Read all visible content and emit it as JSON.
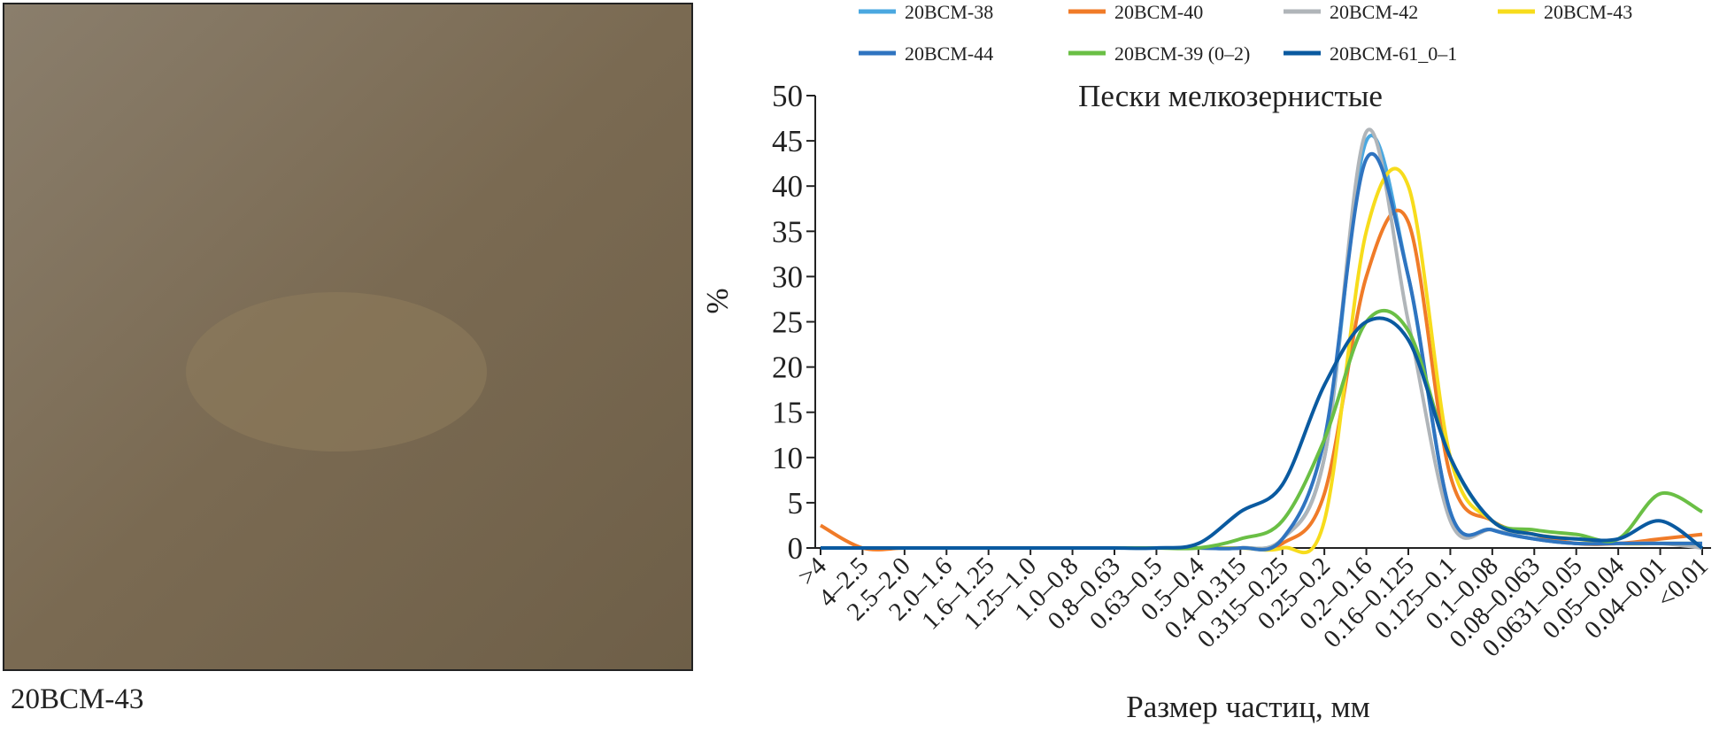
{
  "photo_caption": "20BCM-43",
  "chart_data": {
    "type": "line",
    "annotation": "Пески мелкозернистые",
    "xlabel": "Размер частиц, мм",
    "ylabel": "%",
    "categories": [
      ">4",
      "4–2.5",
      "2.5–2.0",
      "2.0–1.6",
      "1.6–1.25",
      "1.25–1.0",
      "1.0–0.8",
      "0.8–0.63",
      "0.63–0.5",
      "0.5–0.4",
      "0.4–0.315",
      "0.315–0.25",
      "0.25–0.2",
      "0.2–0.16",
      "0.16–0.125",
      "0.125–0.1",
      "0.1–0.08",
      "0.08–0.063",
      "0.0631–0.05",
      "0.05–0.04",
      "0.04–0.01",
      "<0.01"
    ],
    "ylim": [
      0,
      50
    ],
    "yticks": [
      0,
      5,
      10,
      15,
      20,
      25,
      30,
      35,
      40,
      45,
      50
    ],
    "series": [
      {
        "name": "20BCM-38",
        "color": "#4aa8e0",
        "values": [
          0,
          0,
          0,
          0,
          0,
          0,
          0,
          0,
          0,
          0,
          0,
          1,
          10,
          45,
          30,
          4,
          2,
          1,
          0.5,
          0.5,
          0.5,
          0.5
        ]
      },
      {
        "name": "20BCM-40",
        "color": "#f07b28",
        "values": [
          2.5,
          0,
          0,
          0,
          0,
          0,
          0,
          0,
          0,
          0,
          0,
          0.5,
          6,
          30,
          36,
          8,
          3,
          1.5,
          0.5,
          0.5,
          1,
          1.5
        ]
      },
      {
        "name": "20BCM-42",
        "color": "#b0b5b9",
        "values": [
          0,
          0,
          0,
          0,
          0,
          0,
          0,
          0,
          0,
          0,
          0,
          1,
          10,
          46,
          25,
          3,
          2,
          1,
          0.5,
          0.5,
          0.5,
          0
        ]
      },
      {
        "name": "20BCM-43",
        "color": "#f7dc1c",
        "values": [
          0,
          0,
          0,
          0,
          0,
          0,
          0,
          0,
          0,
          0,
          0,
          0,
          3,
          35,
          40,
          10,
          3,
          1.5,
          1,
          0.5,
          0.5,
          0.5
        ]
      },
      {
        "name": "20BCM-44",
        "color": "#2f74c0",
        "values": [
          0,
          0,
          0,
          0,
          0,
          0,
          0,
          0,
          0,
          0,
          0,
          1,
          12,
          43,
          30,
          4,
          2,
          1,
          0.5,
          0.5,
          0.5,
          0.5
        ]
      },
      {
        "name": "20BCM-39 (0–2)",
        "color": "#6abf45",
        "values": [
          0,
          0,
          0,
          0,
          0,
          0,
          0,
          0,
          0,
          0,
          1,
          3,
          12,
          25,
          24,
          10,
          3,
          2,
          1.5,
          1,
          6,
          4
        ]
      },
      {
        "name": "20BCM-61_0–1",
        "color": "#0a5aa0",
        "values": [
          0,
          0,
          0,
          0,
          0,
          0,
          0,
          0,
          0,
          0.5,
          4,
          7,
          18,
          25,
          23,
          10,
          3,
          1.5,
          1,
          1,
          3,
          0
        ]
      }
    ]
  }
}
